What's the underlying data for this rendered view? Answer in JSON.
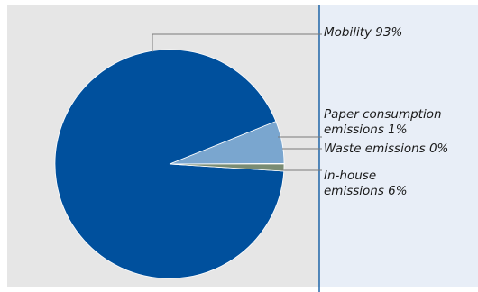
{
  "chart_data": {
    "type": "pie",
    "title": "",
    "slices": [
      {
        "name": "Mobility",
        "value": 93,
        "color": "#00509d",
        "label_lines": [
          "Mobility 93%"
        ]
      },
      {
        "name": "Paper consumption emissions",
        "value": 1,
        "color": "#7a8c73",
        "label_lines": [
          "Paper consumption",
          "emissions 1%"
        ]
      },
      {
        "name": "Waste emissions",
        "value": 0,
        "color": "#c5d3dc",
        "label_lines": [
          "Waste emissions 0%"
        ]
      },
      {
        "name": "In-house emissions",
        "value": 6,
        "color": "#7aa6cf",
        "label_lines": [
          "In-house",
          "emissions 6%"
        ]
      }
    ]
  },
  "colors": {
    "plot_background": "#e6e6e6",
    "legend_background": "#e8eef7",
    "divider": "#00509d",
    "leader": "#7a7a7a"
  }
}
